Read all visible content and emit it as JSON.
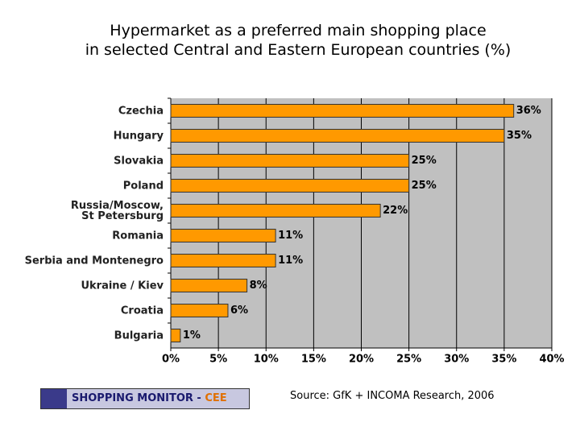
{
  "chart_data": {
    "type": "bar",
    "orientation": "horizontal",
    "title": "Hypermarket as a preferred main shopping place\nin selected Central and Eastern European countries  (%)",
    "categories": [
      "Czechia",
      "Hungary",
      "Slovakia",
      "Poland",
      "Russia/Moscow,\nSt Petersburg",
      "Romania",
      "Serbia and Montenegro",
      "Ukraine / Kiev",
      "Croatia",
      "Bulgaria"
    ],
    "values": [
      36,
      35,
      25,
      25,
      22,
      11,
      11,
      8,
      6,
      1
    ],
    "value_labels": [
      "36%",
      "35%",
      "25%",
      "25%",
      "22%",
      "11%",
      "11%",
      "8%",
      "6%",
      "1%"
    ],
    "color": "#ff9900",
    "xlim": [
      0,
      40
    ],
    "xticks": [
      {
        "value": 0,
        "label": "0%"
      },
      {
        "value": 5,
        "label": "5%"
      },
      {
        "value": 10,
        "label": "10%"
      },
      {
        "value": 15,
        "label": "15%"
      },
      {
        "value": 20,
        "label": "20%"
      },
      {
        "value": 25,
        "label": "25%"
      },
      {
        "value": 30,
        "label": "30%"
      },
      {
        "value": 35,
        "label": "35%"
      },
      {
        "value": 40,
        "label": "40%"
      }
    ],
    "grid": true,
    "logo": "SHOPPING MONITOR -",
    "logo_accent": "CEE",
    "source": "Source: GfK + INCOMA Research, 2006"
  }
}
